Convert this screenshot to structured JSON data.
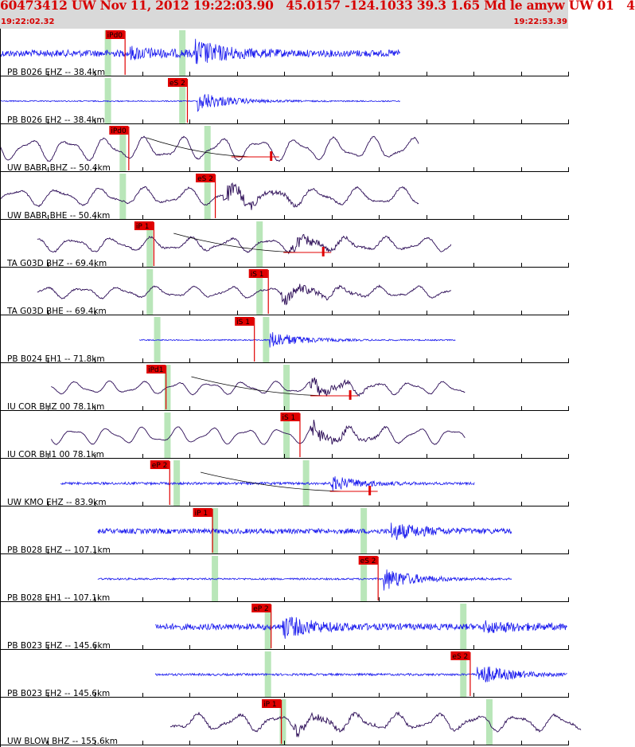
{
  "header": {
    "title": "60473412 UW Nov 11, 2012 19:22:03.90   45.0157 -124.1033 39.3 1.65 Md le amyw UW 01   4",
    "start_time": "19:22:02.32",
    "end_time": "19:22:53.39"
  },
  "colors": {
    "broadband": "#1a1aee",
    "shortperiod": "#2a0a55",
    "pick_box": "#e00000",
    "theoretical": "#b9e6b9",
    "header_bg": "#d9d9d9",
    "header_text": "#d60000"
  },
  "chart_data": {
    "type": "seismogram",
    "start_time": "19:22:02.32",
    "end_time": "19:22:53.39",
    "traces": [
      {
        "label": "PB B026 EHZ -- 38.4km",
        "color": "#1a1aee",
        "x": [
          0,
          43
        ],
        "amp": 12,
        "noise": 0.7,
        "burst": [
          {
            "x": 14,
            "a": 1
          },
          {
            "x": 21,
            "a": 2.4
          }
        ],
        "period": 0,
        "pick": {
          "text": "iPd0",
          "x": 13.4
        },
        "theoretical": [
          11.6,
          19.6
        ],
        "scribble": false
      },
      {
        "label": "PB B026 EH2 -- 38.4km",
        "color": "#1a1aee",
        "x": [
          0,
          43
        ],
        "amp": 10,
        "noise": 0.15,
        "burst": [
          {
            "x": 21.2,
            "a": 2.6
          }
        ],
        "period": 0,
        "pick": {
          "text": "eS 2",
          "x": 20.1
        },
        "theoretical": [
          11.6,
          19.6
        ],
        "scribble": false
      },
      {
        "label": "UW BABR BHZ -- 50.4km",
        "color": "#2a0a55",
        "x": [
          0,
          45
        ],
        "amp": 18,
        "noise": 0.1,
        "burst": [],
        "period": 4.1,
        "pick": {
          "text": "iPd0",
          "x": 13.8
        },
        "theoretical": [
          13.2,
          22.3
        ],
        "scribble": true
      },
      {
        "label": "UW BABR BHE -- 50.4km",
        "color": "#2a0a55",
        "x": [
          0,
          45
        ],
        "amp": 14,
        "noise": 0.15,
        "burst": [
          {
            "x": 24,
            "a": 1.3
          }
        ],
        "period": 4.6,
        "pick": {
          "text": "eS 2",
          "x": 23.1
        },
        "theoretical": [
          13.2,
          22.3
        ],
        "scribble": false
      },
      {
        "label": "TA G03D BHZ -- 69.4km",
        "color": "#2a0a55",
        "x": [
          4,
          48.5
        ],
        "amp": 11,
        "noise": 0.2,
        "burst": [
          {
            "x": 31,
            "a": 1.3
          }
        ],
        "period": 4.2,
        "pick": {
          "text": "iP 1",
          "x": 16.5
        },
        "theoretical": [
          16.1,
          27.9
        ],
        "scribble": true
      },
      {
        "label": "TA G03D BHE -- 69.4km",
        "color": "#2a0a55",
        "x": [
          4,
          48.5
        ],
        "amp": 9,
        "noise": 0.2,
        "burst": [
          {
            "x": 30.2,
            "a": 1.8
          }
        ],
        "period": 4.0,
        "pick": {
          "text": "iS 1",
          "x": 28.8
        },
        "theoretical": [
          16.1,
          27.9
        ],
        "scribble": false
      },
      {
        "label": "PB B024 EH1 -- 71.8km",
        "color": "#1a1aee",
        "x": [
          15,
          49
        ],
        "amp": 5,
        "noise": 0.3,
        "burst": [
          {
            "x": 29,
            "a": 4.5
          }
        ],
        "period": 0,
        "pick": {
          "text": "iS 1",
          "x": 27.3
        },
        "theoretical": [
          16.9,
          28.6
        ],
        "scribble": false
      },
      {
        "label": "IU COR BHZ 00 78.1km",
        "color": "#2a0a55",
        "x": [
          5.5,
          50
        ],
        "amp": 10,
        "noise": 0.1,
        "burst": [
          {
            "x": 33.3,
            "a": 1.6
          }
        ],
        "period": 3.6,
        "pick": {
          "text": "iPd1",
          "x": 17.8
        },
        "theoretical": [
          18,
          30.8
        ],
        "scribble": true
      },
      {
        "label": "IU COR BH1 00 78.1km",
        "color": "#2a0a55",
        "x": [
          5.5,
          50
        ],
        "amp": 13,
        "noise": 0.05,
        "burst": [
          {
            "x": 33.3,
            "a": 1.5
          }
        ],
        "period": 3.7,
        "pick": {
          "text": "iS 1",
          "x": 32.2
        },
        "theoretical": [
          18,
          30.8
        ],
        "scribble": false
      },
      {
        "label": "UW KMO EHZ -- 83.9km",
        "color": "#1a1aee",
        "x": [
          6.5,
          51
        ],
        "amp": 6,
        "noise": 0.5,
        "burst": [
          {
            "x": 35.5,
            "a": 3
          }
        ],
        "period": 0,
        "pick": {
          "text": "eP 2",
          "x": 18.2
        },
        "theoretical": [
          19,
          32.9
        ],
        "scribble": true
      },
      {
        "label": "PB B028 EHZ -- 107.1km",
        "color": "#1a1aee",
        "x": [
          10.5,
          55
        ],
        "amp": 9,
        "noise": 0.7,
        "burst": [
          {
            "x": 42,
            "a": 2.2
          }
        ],
        "period": 0,
        "pick": {
          "text": "iP 1",
          "x": 22.8
        },
        "theoretical": [
          23.1,
          39.1
        ],
        "scribble": false
      },
      {
        "label": "PB B028 EH1 -- 107.1km",
        "color": "#1a1aee",
        "x": [
          10.5,
          55
        ],
        "amp": 9,
        "noise": 0.25,
        "burst": [
          {
            "x": 41.2,
            "a": 3.2
          }
        ],
        "period": 0,
        "pick": {
          "text": "eS 2",
          "x": 40.6
        },
        "theoretical": [
          23.1,
          39.1
        ],
        "scribble": false
      },
      {
        "label": "PB B023 EHZ -- 145.6km",
        "color": "#1a1aee",
        "x": [
          16.7,
          61
        ],
        "amp": 9,
        "noise": 0.85,
        "burst": [
          {
            "x": 30.4,
            "a": 2.8
          },
          {
            "x": 52,
            "a": 1.4
          }
        ],
        "period": 0,
        "pick": {
          "text": "eP 2",
          "x": 29.1
        },
        "theoretical": [
          28.8,
          49.8
        ],
        "scribble": false
      },
      {
        "label": "PB B023 EH2 -- 145.6km",
        "color": "#1a1aee",
        "x": [
          16.7,
          61
        ],
        "amp": 9,
        "noise": 0.3,
        "burst": [
          {
            "x": 51.3,
            "a": 3
          }
        ],
        "period": 0,
        "pick": {
          "text": "eS 2",
          "x": 50.5
        },
        "theoretical": [
          28.8,
          49.8
        ],
        "scribble": false
      },
      {
        "label": "UW BLOW BHZ -- 155.6km",
        "color": "#2a0a55",
        "x": [
          18.3,
          62.5
        ],
        "amp": 13,
        "noise": 0.25,
        "burst": [
          {
            "x": 31.5,
            "a": 1
          }
        ],
        "period": 4.3,
        "pick": {
          "text": "iP 1",
          "x": 30.2
        },
        "theoretical": [
          30.4,
          52.6
        ],
        "scribble": false
      }
    ]
  }
}
